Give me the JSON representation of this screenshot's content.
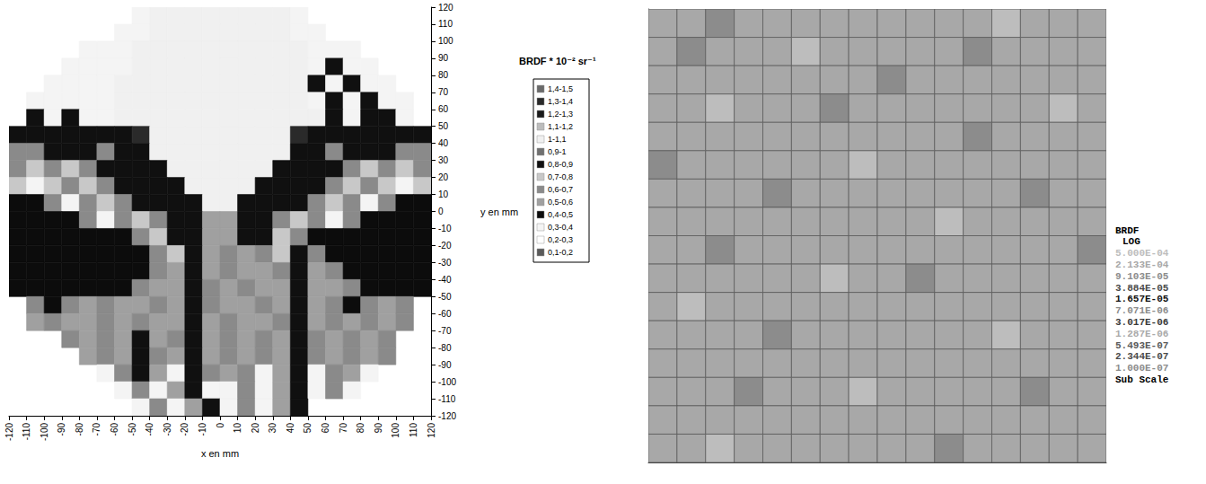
{
  "chart_data": [
    {
      "type": "heatmap",
      "title": "BRDF * 10⁻² sr⁻¹",
      "xlabel": "x en mm",
      "ylabel": "y en mm",
      "xlim": [
        -120,
        120
      ],
      "ylim": [
        -120,
        120
      ],
      "xticks": [
        -120,
        -110,
        -100,
        -90,
        -80,
        -70,
        -60,
        -50,
        -40,
        -30,
        -20,
        -10,
        0,
        10,
        20,
        30,
        40,
        50,
        60,
        70,
        80,
        90,
        100,
        110,
        120
      ],
      "yticks": [
        -120,
        -110,
        -100,
        -90,
        -80,
        -70,
        -60,
        -50,
        -40,
        -30,
        -20,
        -10,
        0,
        10,
        20,
        30,
        40,
        50,
        60,
        70,
        80,
        90,
        100,
        110,
        120
      ],
      "grid": false,
      "color_bins": [
        {
          "min": 1.4,
          "max": 1.5,
          "label": "1,4-1,5",
          "color": "#6a6a6a"
        },
        {
          "min": 1.3,
          "max": 1.4,
          "label": "1,3-1,4",
          "color": "#2a2a2a"
        },
        {
          "min": 1.2,
          "max": 1.3,
          "label": "1,2-1,3",
          "color": "#1a1a1a"
        },
        {
          "min": 1.1,
          "max": 1.2,
          "label": "1,1-1,2",
          "color": "#bcbcbc"
        },
        {
          "min": 1.0,
          "max": 1.1,
          "label": "1-1,1",
          "color": "#f0f0f0"
        },
        {
          "min": 0.9,
          "max": 1.0,
          "label": "0,9-1",
          "color": "#707070"
        },
        {
          "min": 0.8,
          "max": 0.9,
          "label": "0,8-0,9",
          "color": "#101010"
        },
        {
          "min": 0.7,
          "max": 0.8,
          "label": "0,7-0,8",
          "color": "#c8c8c8"
        },
        {
          "min": 0.6,
          "max": 0.7,
          "label": "0,6-0,7",
          "color": "#8a8a8a"
        },
        {
          "min": 0.5,
          "max": 0.6,
          "label": "0,5-0,6",
          "color": "#a0a0a0"
        },
        {
          "min": 0.4,
          "max": 0.5,
          "label": "0,4-0,5",
          "color": "#0c0c0c"
        },
        {
          "min": 0.3,
          "max": 0.4,
          "label": "0,3-0,4",
          "color": "#f4f4f4"
        },
        {
          "min": 0.2,
          "max": 0.3,
          "label": "0,2-0,3",
          "color": "#ffffff"
        },
        {
          "min": 0.1,
          "max": 0.2,
          "label": "0,1-0,2",
          "color": "#5a5a5a"
        }
      ],
      "cells": [
        [
          null,
          null,
          null,
          null,
          null,
          null,
          null,
          0.35,
          1.05,
          1.05,
          1.05,
          1.05,
          1.05,
          1.05,
          1.05,
          1.05,
          0.35,
          null,
          null,
          null,
          null,
          null,
          null,
          null
        ],
        [
          null,
          null,
          null,
          null,
          null,
          null,
          0.35,
          0.35,
          1.05,
          1.05,
          1.05,
          1.05,
          1.05,
          1.05,
          1.05,
          1.05,
          0.35,
          0.35,
          null,
          null,
          null,
          null,
          null,
          null
        ],
        [
          null,
          null,
          null,
          null,
          0.35,
          0.35,
          0.35,
          1.05,
          1.05,
          1.05,
          1.05,
          1.05,
          1.05,
          1.05,
          1.05,
          1.05,
          1.05,
          0.35,
          0.35,
          0.35,
          null,
          null,
          null,
          null
        ],
        [
          null,
          null,
          null,
          0.35,
          0.35,
          0.35,
          0.35,
          1.05,
          1.05,
          1.05,
          1.05,
          1.05,
          1.05,
          1.05,
          1.05,
          1.05,
          1.05,
          0.35,
          0.85,
          0.35,
          0.35,
          null,
          null,
          null
        ],
        [
          null,
          null,
          0.35,
          0.35,
          0.35,
          0.35,
          1.05,
          1.05,
          1.05,
          1.05,
          1.05,
          1.05,
          1.05,
          1.05,
          1.05,
          1.05,
          1.05,
          0.85,
          0.35,
          0.85,
          0.35,
          0.35,
          null,
          null
        ],
        [
          null,
          0.35,
          0.35,
          0.35,
          0.35,
          0.35,
          1.05,
          1.05,
          1.05,
          1.05,
          1.05,
          1.05,
          1.05,
          1.05,
          1.05,
          1.05,
          1.05,
          0.35,
          0.85,
          0.35,
          0.85,
          0.35,
          0.35,
          null
        ],
        [
          null,
          0.85,
          0.35,
          0.85,
          0.35,
          0.35,
          1.05,
          1.05,
          1.05,
          1.05,
          1.05,
          1.05,
          1.05,
          1.05,
          1.05,
          1.05,
          1.05,
          1.05,
          0.85,
          0.35,
          0.85,
          0.85,
          0.35,
          null
        ],
        [
          0.85,
          0.85,
          0.85,
          0.85,
          0.85,
          0.85,
          0.85,
          1.35,
          1.05,
          1.05,
          1.05,
          1.05,
          1.05,
          1.05,
          1.05,
          1.05,
          1.35,
          0.85,
          0.85,
          0.85,
          0.85,
          0.85,
          0.85,
          0.85
        ],
        [
          0.65,
          0.65,
          0.85,
          0.85,
          0.85,
          0.65,
          0.85,
          0.85,
          1.05,
          1.05,
          1.05,
          1.05,
          1.05,
          1.05,
          1.05,
          1.05,
          0.85,
          0.85,
          0.65,
          0.85,
          0.85,
          0.85,
          0.65,
          0.65
        ],
        [
          0.65,
          0.75,
          0.65,
          0.75,
          0.65,
          0.85,
          0.85,
          0.85,
          0.85,
          1.05,
          1.05,
          1.05,
          1.05,
          1.05,
          1.05,
          0.85,
          0.85,
          0.85,
          0.85,
          0.65,
          0.75,
          0.65,
          0.75,
          0.65
        ],
        [
          0.75,
          0.35,
          0.75,
          0.65,
          0.75,
          0.65,
          0.85,
          0.85,
          0.85,
          0.85,
          1.05,
          1.05,
          1.05,
          1.05,
          0.85,
          0.85,
          0.85,
          0.85,
          0.65,
          0.75,
          0.65,
          0.75,
          0.35,
          0.75
        ],
        [
          0.45,
          0.45,
          0.65,
          0.35,
          0.65,
          0.75,
          0.65,
          0.85,
          0.85,
          0.85,
          0.85,
          1.05,
          1.05,
          0.85,
          0.85,
          0.85,
          0.85,
          0.65,
          0.75,
          0.65,
          0.35,
          0.65,
          0.45,
          0.45
        ],
        [
          0.45,
          0.45,
          0.45,
          0.45,
          0.65,
          0.35,
          0.65,
          0.75,
          0.65,
          0.85,
          0.85,
          0.55,
          0.55,
          0.85,
          0.85,
          0.65,
          0.75,
          0.65,
          0.35,
          0.65,
          0.45,
          0.45,
          0.45,
          0.45
        ],
        [
          0.45,
          0.45,
          0.45,
          0.45,
          0.45,
          0.45,
          0.45,
          0.65,
          0.75,
          0.85,
          0.85,
          0.55,
          0.55,
          0.85,
          0.85,
          0.75,
          0.65,
          0.45,
          0.45,
          0.45,
          0.45,
          0.45,
          0.45,
          0.45
        ],
        [
          0.45,
          0.45,
          0.45,
          0.45,
          0.45,
          0.45,
          0.45,
          0.45,
          0.65,
          0.75,
          0.85,
          0.55,
          0.65,
          0.55,
          0.65,
          0.75,
          0.85,
          0.65,
          0.45,
          0.45,
          0.45,
          0.45,
          0.45,
          0.45
        ],
        [
          0.45,
          0.45,
          0.45,
          0.45,
          0.45,
          0.45,
          0.45,
          0.45,
          0.65,
          0.55,
          0.85,
          0.55,
          0.65,
          0.55,
          0.55,
          0.65,
          0.85,
          0.55,
          0.65,
          0.45,
          0.45,
          0.45,
          0.45,
          0.45
        ],
        [
          0.45,
          0.45,
          0.45,
          0.45,
          0.45,
          0.45,
          0.45,
          0.65,
          0.55,
          0.55,
          0.85,
          0.65,
          0.55,
          0.65,
          0.55,
          0.55,
          0.85,
          0.55,
          0.55,
          0.65,
          0.45,
          0.45,
          0.45,
          0.45
        ],
        [
          null,
          0.65,
          0.45,
          0.65,
          0.55,
          0.65,
          0.55,
          0.55,
          0.65,
          0.55,
          0.85,
          0.65,
          0.55,
          0.55,
          0.65,
          0.55,
          0.85,
          0.55,
          0.65,
          0.45,
          0.65,
          0.55,
          0.65,
          null
        ],
        [
          null,
          0.55,
          0.65,
          0.55,
          0.55,
          0.65,
          0.55,
          0.65,
          0.55,
          0.55,
          0.85,
          0.55,
          0.65,
          0.55,
          0.55,
          0.65,
          0.85,
          0.55,
          0.65,
          0.55,
          0.65,
          0.55,
          0.65,
          null
        ],
        [
          null,
          null,
          null,
          0.65,
          0.55,
          0.65,
          0.55,
          0.85,
          0.55,
          0.65,
          0.85,
          0.55,
          0.65,
          0.55,
          0.65,
          0.55,
          0.85,
          0.65,
          0.55,
          0.65,
          0.55,
          0.65,
          null,
          null
        ],
        [
          null,
          null,
          null,
          null,
          0.55,
          0.65,
          0.55,
          0.85,
          0.65,
          0.55,
          0.85,
          0.55,
          0.65,
          0.55,
          0.65,
          0.55,
          0.85,
          0.65,
          0.55,
          0.65,
          0.55,
          0.65,
          null,
          null
        ],
        [
          null,
          null,
          null,
          null,
          null,
          0.35,
          0.65,
          0.85,
          0.55,
          0.35,
          0.85,
          0.65,
          0.55,
          0.65,
          0.35,
          0.55,
          0.85,
          0.35,
          0.65,
          0.55,
          0.35,
          null,
          null,
          null
        ],
        [
          null,
          null,
          null,
          null,
          null,
          null,
          0.35,
          0.65,
          0.35,
          0.55,
          0.85,
          0.35,
          0.35,
          0.65,
          0.35,
          0.55,
          0.85,
          0.35,
          0.65,
          0.35,
          null,
          null,
          null,
          null
        ],
        [
          null,
          null,
          null,
          null,
          null,
          null,
          null,
          0.35,
          0.65,
          0.35,
          0.55,
          0.85,
          0.35,
          0.65,
          0.35,
          0.55,
          0.85,
          null,
          null,
          null,
          null,
          null,
          null,
          null
        ]
      ]
    },
    {
      "type": "heatmap",
      "tick_labels": false,
      "colorbar": {
        "title": "BRDF",
        "scale_label": "LOG",
        "log": true,
        "ticks": [
          {
            "value": 0.0005,
            "label": "5.000E-04"
          },
          {
            "value": 0.0002133,
            "label": "2.133E-04"
          },
          {
            "value": 9.103e-05,
            "label": "9.103E-05"
          },
          {
            "value": 3.884e-05,
            "label": "3.884E-05"
          },
          {
            "value": 1.657e-05,
            "label": "1.657E-05"
          },
          {
            "value": 7.071e-06,
            "label": "7.071E-06"
          },
          {
            "value": 3.017e-06,
            "label": "3.017E-06"
          },
          {
            "value": 1.287e-06,
            "label": "1.287E-06"
          },
          {
            "value": 5.493e-07,
            "label": "5.493E-07"
          },
          {
            "value": 2.344e-07,
            "label": "2.344E-07"
          },
          {
            "value": 1e-07,
            "label": "1.000E-07"
          }
        ],
        "colors": [
          "#bdbdbd",
          "#a8a8a8",
          "#8c8c8c",
          "#4a4a4a",
          "#111111",
          "#8c8c8c",
          "#3a3a3a",
          "#aaaaaa",
          "#5a5a5a",
          "#4a4a4a",
          "#8c8c8c"
        ],
        "footer": "Sub Scale"
      },
      "cells": [
        [
          0.0002133,
          0.0002133,
          9.103e-05,
          0.0002133,
          0.0002133,
          0.0002133,
          0.0002133,
          0.0002133,
          0.0002133,
          0.0002133,
          0.0002133,
          0.0002133,
          0.0005,
          0.0002133,
          0.0002133,
          0.0002133
        ],
        [
          0.0002133,
          9.103e-05,
          0.0002133,
          0.0002133,
          0.0002133,
          0.0005,
          0.0002133,
          0.0002133,
          0.0002133,
          0.0002133,
          0.0002133,
          9.103e-05,
          0.0002133,
          0.0002133,
          0.0002133,
          0.0002133
        ],
        [
          0.0002133,
          0.0002133,
          0.0002133,
          0.0002133,
          0.0002133,
          0.0002133,
          0.0002133,
          0.0002133,
          9.103e-05,
          0.0002133,
          0.0002133,
          0.0002133,
          0.0002133,
          0.0002133,
          0.0002133,
          0.0002133
        ],
        [
          0.0002133,
          0.0002133,
          0.0005,
          0.0002133,
          0.0002133,
          0.0002133,
          9.103e-05,
          0.0002133,
          0.0002133,
          0.0002133,
          0.0002133,
          0.0002133,
          0.0002133,
          0.0002133,
          0.0005,
          0.0002133
        ],
        [
          0.0002133,
          0.0002133,
          0.0002133,
          0.0002133,
          0.0002133,
          0.0002133,
          0.0002133,
          0.0002133,
          0.0002133,
          0.0002133,
          0.0002133,
          9.103e-05,
          0.0002133,
          0.0002133,
          0.0002133,
          0.0002133
        ],
        [
          9.103e-05,
          0.0002133,
          0.0002133,
          0.0002133,
          0.0002133,
          0.0002133,
          0.0002133,
          0.0005,
          0.0002133,
          0.0002133,
          0.0002133,
          0.0002133,
          0.0002133,
          0.0002133,
          0.0002133,
          0.0002133
        ],
        [
          0.0002133,
          0.0002133,
          0.0002133,
          0.0002133,
          9.103e-05,
          0.0002133,
          0.0002133,
          0.0002133,
          0.0002133,
          0.0002133,
          0.0002133,
          0.0002133,
          0.0002133,
          9.103e-05,
          0.0002133,
          0.0002133
        ],
        [
          0.0002133,
          0.0002133,
          0.0002133,
          0.0002133,
          0.0002133,
          0.0002133,
          0.0002133,
          0.0002133,
          0.0002133,
          0.0002133,
          0.0005,
          0.0002133,
          0.0002133,
          0.0002133,
          0.0002133,
          0.0002133
        ],
        [
          0.0002133,
          0.0002133,
          9.103e-05,
          0.0002133,
          0.0002133,
          0.0002133,
          0.0002133,
          0.0002133,
          0.0002133,
          0.0002133,
          0.0002133,
          0.0002133,
          0.0002133,
          0.0002133,
          0.0002133,
          9.103e-05
        ],
        [
          0.0002133,
          0.0002133,
          0.0002133,
          0.0002133,
          0.0002133,
          0.0002133,
          0.0005,
          0.0002133,
          0.0002133,
          9.103e-05,
          0.0002133,
          0.0002133,
          0.0002133,
          0.0002133,
          0.0002133,
          0.0002133
        ],
        [
          0.0002133,
          0.0005,
          0.0002133,
          0.0002133,
          0.0002133,
          0.0002133,
          0.0002133,
          0.0002133,
          0.0002133,
          0.0002133,
          0.0002133,
          0.0002133,
          0.0002133,
          0.0002133,
          0.0002133,
          0.0002133
        ],
        [
          0.0002133,
          0.0002133,
          0.0002133,
          0.0002133,
          9.103e-05,
          0.0002133,
          0.0002133,
          0.0002133,
          0.0002133,
          0.0002133,
          0.0002133,
          0.0002133,
          0.0005,
          0.0002133,
          0.0002133,
          0.0002133
        ],
        [
          0.0002133,
          0.0002133,
          0.0002133,
          0.0002133,
          0.0002133,
          0.0002133,
          0.0002133,
          0.0002133,
          0.0002133,
          0.0002133,
          0.0002133,
          0.0002133,
          0.0002133,
          0.0002133,
          0.0002133,
          0.0002133
        ],
        [
          0.0002133,
          0.0002133,
          0.0002133,
          9.103e-05,
          0.0002133,
          0.0002133,
          0.0002133,
          0.0005,
          0.0002133,
          0.0002133,
          0.0002133,
          0.0002133,
          0.0002133,
          9.103e-05,
          0.0002133,
          0.0002133
        ],
        [
          0.0002133,
          0.0002133,
          0.0002133,
          0.0002133,
          0.0002133,
          0.0002133,
          0.0002133,
          0.0002133,
          0.0002133,
          0.0002133,
          0.0002133,
          0.0002133,
          0.0002133,
          0.0002133,
          0.0002133,
          0.0002133
        ],
        [
          0.0002133,
          0.0002133,
          0.0005,
          0.0002133,
          0.0002133,
          0.0002133,
          0.0002133,
          0.0002133,
          0.0002133,
          0.0002133,
          9.103e-05,
          0.0002133,
          0.0002133,
          0.0002133,
          0.0002133,
          0.0002133
        ]
      ]
    }
  ]
}
